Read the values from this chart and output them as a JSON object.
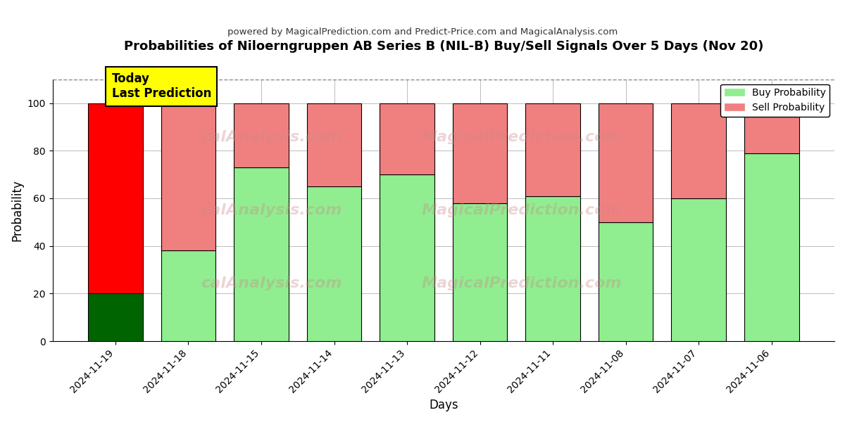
{
  "title": "Probabilities of Niloerngruppen AB Series B (NIL-B) Buy/Sell Signals Over 5 Days (Nov 20)",
  "subtitle": "powered by MagicalPrediction.com and Predict-Price.com and MagicalAnalysis.com",
  "xlabel": "Days",
  "ylabel": "Probability",
  "dates": [
    "2024-11-19",
    "2024-11-18",
    "2024-11-15",
    "2024-11-14",
    "2024-11-13",
    "2024-11-12",
    "2024-11-11",
    "2024-11-08",
    "2024-11-07",
    "2024-11-06"
  ],
  "buy_values": [
    20,
    38,
    73,
    65,
    70,
    58,
    61,
    50,
    60,
    79
  ],
  "sell_values": [
    80,
    62,
    27,
    35,
    30,
    42,
    39,
    50,
    40,
    21
  ],
  "today_buy_color": "#006400",
  "today_sell_color": "#ff0000",
  "buy_color": "#90EE90",
  "sell_color": "#f08080",
  "today_annotation": "Today\nLast Prediction",
  "ylim": [
    0,
    110
  ],
  "dashed_line_y": 110,
  "watermark_rows": [
    [
      "calAnalysis.com",
      "MagicalPrediction.com"
    ],
    [
      "calAnalysis.com",
      "MagicalPrediction.com"
    ],
    [
      "calAnalysis.com",
      "MagicalPrediction.com"
    ]
  ],
  "background_color": "#ffffff",
  "grid_color": "#bbbbbb"
}
